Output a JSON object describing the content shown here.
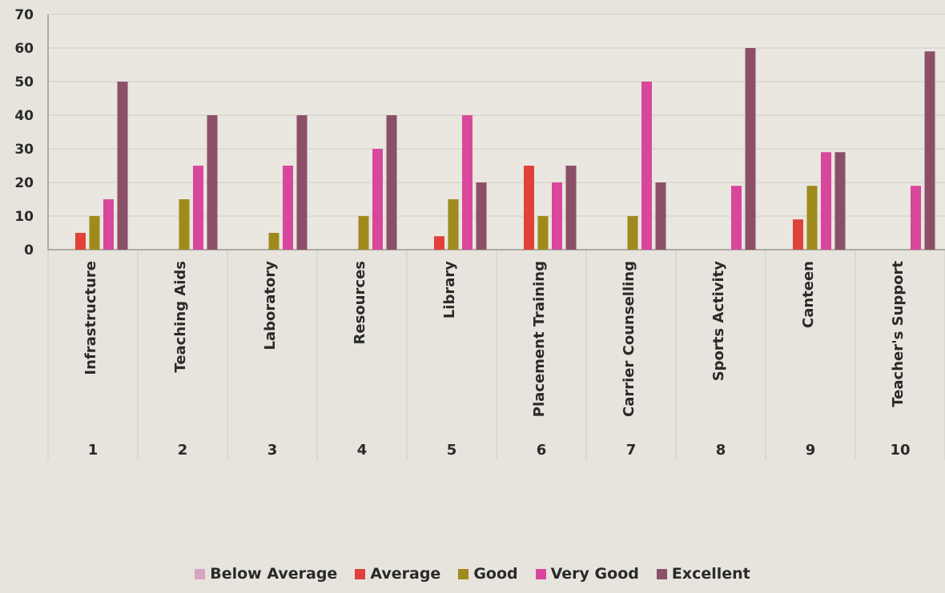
{
  "chart_data": {
    "type": "bar",
    "categories": [
      "Infrastructure",
      "Teaching Aids",
      "Laboratory",
      "Resources",
      "Library",
      "Placement Training",
      "Carrier Counselling",
      "Sports Activity",
      "Canteen",
      "Teacher's Support"
    ],
    "category_numbers": [
      "1",
      "2",
      "3",
      "4",
      "5",
      "6",
      "7",
      "8",
      "9",
      "10"
    ],
    "series": [
      {
        "name": "Below Average",
        "color": "#d9a3c2",
        "values": [
          0,
          0,
          0,
          0,
          0,
          0,
          0,
          0,
          0,
          0
        ]
      },
      {
        "name": "Average",
        "color": "#e0413a",
        "values": [
          5,
          0,
          0,
          0,
          4,
          25,
          0,
          0,
          9,
          0
        ]
      },
      {
        "name": "Good",
        "color": "#a08a1e",
        "values": [
          10,
          15,
          5,
          10,
          15,
          10,
          10,
          0,
          19,
          0
        ]
      },
      {
        "name": "Very Good",
        "color": "#d8479c",
        "values": [
          15,
          25,
          25,
          30,
          40,
          20,
          50,
          19,
          29,
          19
        ]
      },
      {
        "name": "Excellent",
        "color": "#8c4f68",
        "values": [
          50,
          40,
          40,
          40,
          20,
          25,
          20,
          60,
          29,
          59
        ]
      }
    ],
    "y_ticks": [
      "0",
      "10",
      "20",
      "30",
      "40",
      "50",
      "60",
      "70"
    ],
    "ylim": [
      0,
      70
    ],
    "grid": true,
    "legend_position": "bottom",
    "title": "",
    "xlabel": "",
    "ylabel": ""
  }
}
